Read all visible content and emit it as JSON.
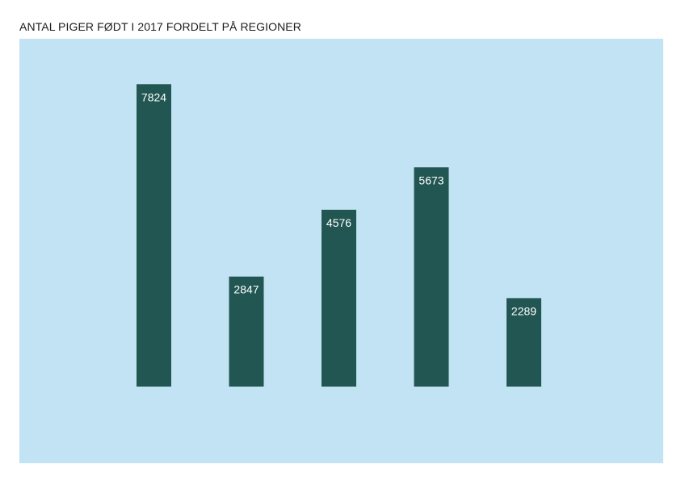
{
  "chart_data": {
    "type": "bar",
    "title": "ANTAL PIGER FØDT I 2017 FORDELT PÅ REGIONER",
    "categories": [
      "",
      "",
      "",
      "",
      ""
    ],
    "values": [
      7824,
      2847,
      4576,
      5673,
      2289
    ],
    "data_labels": [
      "7824",
      "2847",
      "4576",
      "5673",
      "2289"
    ],
    "xlabel": "",
    "ylabel": "",
    "ylim": [
      0,
      9000
    ],
    "grid": false,
    "legend": "none",
    "colors": {
      "bar": "#225652",
      "plot_background": "#c2e3f3",
      "label_text": "#ffffff",
      "title_text": "#1c1c1c"
    }
  }
}
